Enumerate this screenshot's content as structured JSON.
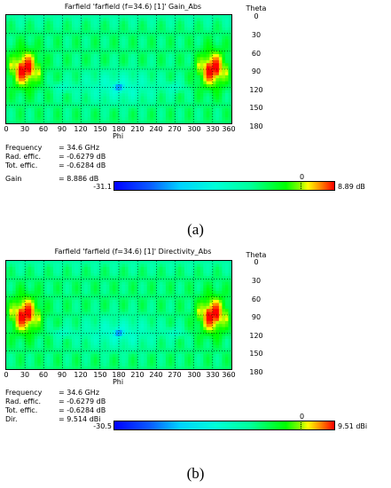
{
  "phi_ticks": [
    "0",
    "30",
    "60",
    "90",
    "120",
    "150",
    "180",
    "210",
    "240",
    "270",
    "300",
    "330",
    "360"
  ],
  "theta_ticks": [
    "0",
    "30",
    "60",
    "90",
    "120",
    "150",
    "180"
  ],
  "panels": [
    {
      "caption": "(a)",
      "title": "Farfield 'farfield (f=34.6) [1]' Gain_Abs",
      "phi_label": "Phi",
      "theta_label": "Theta",
      "info": [
        {
          "key": "Frequency",
          "value": "= 34.6 GHz"
        },
        {
          "key": "Rad. effic.",
          "value": "= -0.6279 dB"
        },
        {
          "key": "Tot. effic.",
          "value": "= -0.6284 dB"
        },
        {
          "key": "Gain",
          "value": "= 8.886 dB"
        }
      ],
      "colorbar": {
        "min": "-31.1",
        "zero": "0",
        "max": "8.89 dB"
      }
    },
    {
      "caption": "(b)",
      "title": "Farfield 'farfield (f=34.6) [1]' Directivity_Abs",
      "phi_label": "Phi",
      "theta_label": "Theta",
      "info": [
        {
          "key": "Frequency",
          "value": "= 34.6 GHz"
        },
        {
          "key": "Rad. effic.",
          "value": "= -0.6279 dB"
        },
        {
          "key": "Tot. effic.",
          "value": "= -0.6284 dB"
        },
        {
          "key": "Dir.",
          "value": "= 9.514 dBi"
        }
      ],
      "colorbar": {
        "min": "-30.5",
        "zero": "0",
        "max": "9.51 dBi"
      }
    }
  ],
  "chart_data": [
    {
      "type": "heatmap",
      "title": "Farfield 'farfield (f=34.6) [1]' Gain_Abs",
      "xlabel": "Phi",
      "ylabel": "Theta",
      "x_range": [
        0,
        360
      ],
      "y_range": [
        0,
        180
      ],
      "y_inverted": true,
      "value_range": [
        -31.1,
        8.89
      ],
      "value_unit": "dB",
      "grid": true,
      "colormap": "blue-cyan-green-yellow-red",
      "peak_regions_phi": [
        30,
        330
      ],
      "peak_theta": 90,
      "null_regions": [
        {
          "phi": 180,
          "theta": 120
        }
      ]
    },
    {
      "type": "heatmap",
      "title": "Farfield 'farfield (f=34.6) [1]' Directivity_Abs",
      "xlabel": "Phi",
      "ylabel": "Theta",
      "x_range": [
        0,
        360
      ],
      "y_range": [
        0,
        180
      ],
      "y_inverted": true,
      "value_range": [
        -30.5,
        9.51
      ],
      "value_unit": "dBi",
      "grid": true,
      "colormap": "blue-cyan-green-yellow-red",
      "peak_regions_phi": [
        30,
        330
      ],
      "peak_theta": 90,
      "null_regions": [
        {
          "phi": 180,
          "theta": 120
        }
      ]
    }
  ]
}
